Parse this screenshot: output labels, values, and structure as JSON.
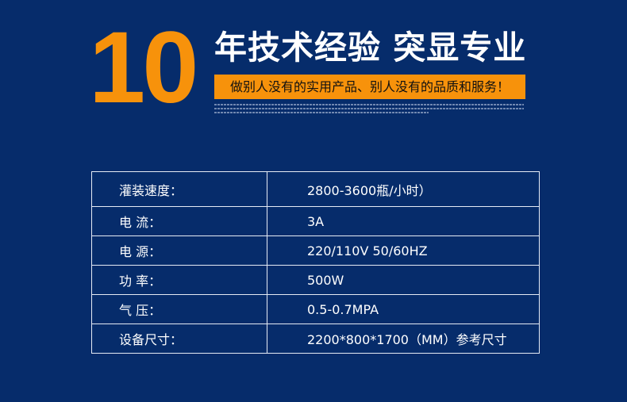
{
  "header": {
    "big_number": "10",
    "title": "年技术经验 突显专业",
    "slogan": "做别人没有的实用产品、别人没有的品质和服务！",
    "accent_color": "#f7920b",
    "background_color": "#062c6b"
  },
  "specs": [
    {
      "label": "灌装速度：",
      "value": "2800-3600瓶/小时）"
    },
    {
      "label": "电 流：",
      "value": "3A"
    },
    {
      "label": "电 源：",
      "value": "220/110V 50/60HZ"
    },
    {
      "label": "功 率：",
      "value": "500W"
    },
    {
      "label": "气 压：",
      "value": "0.5-0.7MPA"
    },
    {
      "label": "设备尺寸：",
      "value": "2200*800*1700（MM）参考尺寸"
    }
  ]
}
